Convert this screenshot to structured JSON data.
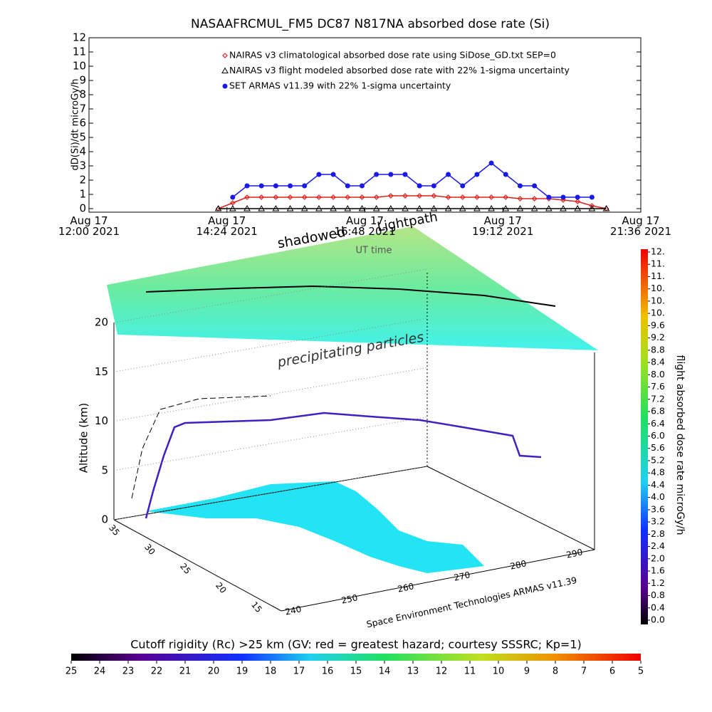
{
  "chart_data": [
    {
      "type": "line",
      "title": "NASAAFRCMUL_FM5 DC87 N817NA absorbed dose rate (Si)",
      "y_label": "dD(Si)/dt microGy/h",
      "x_label": "UT time",
      "x": [
        "2021-08-17 14:15",
        "2021-08-17 14:30",
        "2021-08-17 14:45",
        "2021-08-17 15:00",
        "2021-08-17 15:15",
        "2021-08-17 15:30",
        "2021-08-17 15:45",
        "2021-08-17 16:00",
        "2021-08-17 16:15",
        "2021-08-17 16:30",
        "2021-08-17 16:45",
        "2021-08-17 17:00",
        "2021-08-17 17:15",
        "2021-08-17 17:30",
        "2021-08-17 17:45",
        "2021-08-17 18:00",
        "2021-08-17 18:15",
        "2021-08-17 18:30",
        "2021-08-17 18:45",
        "2021-08-17 19:00",
        "2021-08-17 19:15",
        "2021-08-17 19:30",
        "2021-08-17 19:45",
        "2021-08-17 20:00",
        "2021-08-17 20:15",
        "2021-08-17 20:30",
        "2021-08-17 20:45",
        "2021-08-17 21:00"
      ],
      "series": [
        {
          "name": "NAIRAS v3 climatological absorbed dose rate using SiDose_GD.txt SEP=0",
          "color": "#e0201c",
          "marker": "diamond",
          "values": [
            0.0,
            0.4,
            0.8,
            0.8,
            0.8,
            0.8,
            0.8,
            0.8,
            0.8,
            0.8,
            0.8,
            0.8,
            0.9,
            0.9,
            0.9,
            0.9,
            0.8,
            0.8,
            0.8,
            0.8,
            0.8,
            0.7,
            0.7,
            0.7,
            0.6,
            0.5,
            0.2,
            0.0
          ]
        },
        {
          "name": "NAIRAS v3 flight modeled absorbed dose rate with 22% 1-sigma uncertainty",
          "color": "#000000",
          "marker": "triangle",
          "values": [
            0,
            0,
            0,
            0,
            0,
            0,
            0,
            0,
            0,
            0,
            0,
            0,
            0,
            0,
            0,
            0,
            0,
            0,
            0,
            0,
            0,
            0,
            0,
            0,
            0,
            0,
            0,
            0
          ]
        },
        {
          "name": "SET ARMAS v11.39 with 22% 1-sigma uncertainty",
          "color": "#1a1ae6",
          "marker": "circle",
          "values": [
            null,
            0.8,
            1.6,
            1.6,
            1.6,
            1.6,
            1.6,
            2.4,
            2.4,
            1.6,
            1.6,
            2.4,
            2.4,
            2.4,
            1.6,
            1.6,
            2.4,
            1.6,
            2.4,
            3.2,
            2.4,
            1.6,
            1.6,
            0.8,
            0.8,
            0.8,
            0.8,
            null
          ]
        }
      ],
      "xlim": [
        "2021-08-17 12:00",
        "2021-08-17 21:36"
      ],
      "xticks": [
        {
          "value": "2021-08-17 12:00",
          "label": "Aug 17\n12:00 2021"
        },
        {
          "value": "2021-08-17 14:24",
          "label": "Aug 17\n14:24 2021"
        },
        {
          "value": "2021-08-17 16:48",
          "label": "Aug 17\n16:48 2021"
        },
        {
          "value": "2021-08-17 19:12",
          "label": "Aug 17\n19:12 2021"
        },
        {
          "value": "2021-08-17 21:36",
          "label": "Aug 17\n21:36 2021"
        }
      ],
      "ylim": [
        0,
        12
      ],
      "yticks": [
        0,
        1,
        2,
        3,
        4,
        5,
        6,
        7,
        8,
        9,
        10,
        11,
        12
      ]
    },
    {
      "type": "surface3d",
      "z_label": "Altitude (km)",
      "zlim": [
        0,
        20
      ],
      "zticks": [
        0,
        5,
        10,
        15,
        20
      ],
      "yticks": [
        35,
        30,
        25,
        20,
        15
      ],
      "xticks": [
        240,
        250,
        260,
        270,
        280,
        290
      ],
      "annotations": [
        "shadowed",
        "Lightpath",
        "precipitating particles"
      ],
      "credit": "Space Environment Technologies ARMAS v11.39"
    },
    {
      "type": "colorbar",
      "title": "flight absorbed dose rate microGy/h",
      "lim": [
        0,
        12
      ],
      "ticks": [
        {
          "value": 0,
          "label": "0.0"
        },
        {
          "value": 0.4,
          "label": "0.4"
        },
        {
          "value": 0.8,
          "label": "0.8"
        },
        {
          "value": 1.2,
          "label": "1.2"
        },
        {
          "value": 1.6,
          "label": "1.6"
        },
        {
          "value": 2,
          "label": "2.0"
        },
        {
          "value": 2.4,
          "label": "2.4"
        },
        {
          "value": 2.8,
          "label": "2.8"
        },
        {
          "value": 3.2,
          "label": "3.2"
        },
        {
          "value": 3.6,
          "label": "3.6"
        },
        {
          "value": 4,
          "label": "4.0"
        },
        {
          "value": 4.4,
          "label": "4.4"
        },
        {
          "value": 4.8,
          "label": "4.8"
        },
        {
          "value": 5.2,
          "label": "5.2"
        },
        {
          "value": 5.6,
          "label": "5.6"
        },
        {
          "value": 6,
          "label": "6.0"
        },
        {
          "value": 6.4,
          "label": "6.4"
        },
        {
          "value": 6.8,
          "label": "6.8"
        },
        {
          "value": 7.2,
          "label": "7.2"
        },
        {
          "value": 7.6,
          "label": "7.6"
        },
        {
          "value": 8,
          "label": "8.0"
        },
        {
          "value": 8.4,
          "label": "8.4"
        },
        {
          "value": 8.8,
          "label": "8.8"
        },
        {
          "value": 9.2,
          "label": "9.2"
        },
        {
          "value": 9.6,
          "label": "9.6"
        },
        {
          "value": 10,
          "label": "10."
        },
        {
          "value": 10.4,
          "label": "10."
        },
        {
          "value": 10.8,
          "label": "10."
        },
        {
          "value": 11.2,
          "label": "11."
        },
        {
          "value": 11.6,
          "label": "11."
        },
        {
          "value": 12,
          "label": "12."
        }
      ]
    },
    {
      "type": "colorbar",
      "title": "Cutoff rigidity (Rc) >25 km (GV: red = greatest hazard; courtesy SSSRC; Kp=1)",
      "lim": [
        25,
        5
      ],
      "ticks": [
        25,
        24,
        23,
        22,
        21,
        20,
        19,
        18,
        17,
        16,
        15,
        14,
        13,
        12,
        11,
        10,
        9,
        8,
        7,
        6,
        5
      ]
    }
  ]
}
